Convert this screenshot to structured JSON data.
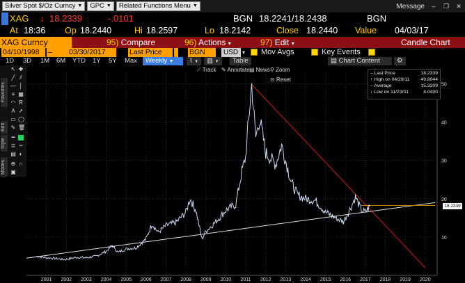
{
  "topbar": {
    "security_field": "Silver Spot $/Oz Curncy",
    "gpc_field": "GPC",
    "related_field": "Related Functions Menu",
    "message_label": "Message"
  },
  "quote": {
    "ticker": "XAG",
    "arrow": "↓",
    "last": "18.2339",
    "change": "-.0101",
    "source_label": "BGN",
    "bid_ask": "18.2241/18.2438",
    "source_label2": "BGN",
    "at_label": "At",
    "at_time": "18:36",
    "op_label": "Op",
    "open": "18.2440",
    "hi_label": "Hi",
    "high": "18.2597",
    "lo_label": "Lo",
    "low": "18.2142",
    "close_label": "Close",
    "close": "18.2440",
    "value_label": "Value",
    "value_date": "04/03/17"
  },
  "funcbar": {
    "security": "XAG Curncy",
    "compare_num": "95)",
    "compare": "Compare",
    "actions_num": "96)",
    "actions": "Actions",
    "edit_num": "97)",
    "edit": "Edit",
    "chart_type": "Candle Chart"
  },
  "inputs": {
    "start_date": "04/10/1998",
    "end_date": "03/30/2017",
    "price_type": "Last Price",
    "source": "BGN",
    "currency": "USD",
    "mov_avgs": "Mov Avgs",
    "key_events": "Key Events"
  },
  "periods": {
    "tabs": [
      "1D",
      "3D",
      "1M",
      "6M",
      "YTD",
      "1Y",
      "5Y",
      "Max"
    ],
    "frequency": "Weekly",
    "table": "Table",
    "chart_content": "Chart Content"
  },
  "lefttools": {
    "tabs": [
      "Favorites",
      "Edit",
      "Style",
      "Modes"
    ]
  },
  "charttools": {
    "track": "Track",
    "annotate": "Annotate",
    "news": "News",
    "zoom": "Zoom",
    "reset": "Reset"
  },
  "legend": {
    "last_price_label": "Last Price",
    "last_price": "18.2339",
    "high_label": "High on 04/29/11",
    "high": "49.8044",
    "average_label": "Average",
    "average": "15.3209",
    "low_label": "Low on 11/23/01",
    "low": "4.0400"
  },
  "last_price_tag": "18.2339",
  "chart_data": {
    "type": "line",
    "series": [
      {
        "name": "Last Price",
        "x": [
          2000.5,
          2001.0,
          2001.5,
          2001.9,
          2002.5,
          2003.0,
          2003.5,
          2004.0,
          2004.3,
          2004.6,
          2005.0,
          2005.5,
          2006.0,
          2006.3,
          2006.6,
          2007.0,
          2007.5,
          2008.0,
          2008.2,
          2008.5,
          2008.8,
          2009.0,
          2009.5,
          2010.0,
          2010.5,
          2010.8,
          2011.0,
          2011.1,
          2011.3,
          2011.5,
          2011.7,
          2012.0,
          2012.5,
          2012.8,
          2013.0,
          2013.3,
          2013.6,
          2014.0,
          2014.5,
          2015.0,
          2015.5,
          2015.9,
          2016.3,
          2016.5,
          2016.8,
          2017.0,
          2017.25
        ],
        "y": [
          5.0,
          4.6,
          4.4,
          4.1,
          4.7,
          4.6,
          5.0,
          6.3,
          7.8,
          6.0,
          6.9,
          7.2,
          9.5,
          13.5,
          11.2,
          13.0,
          13.8,
          16.5,
          20.0,
          17.0,
          9.5,
          11.5,
          14.0,
          17.0,
          18.5,
          27.0,
          31.0,
          38.0,
          49.8,
          36.0,
          41.0,
          32.0,
          29.0,
          34.0,
          30.0,
          24.0,
          21.0,
          20.0,
          19.5,
          16.5,
          15.0,
          14.0,
          18.0,
          20.5,
          17.0,
          16.5,
          18.2339
        ]
      }
    ],
    "trendlines": [
      {
        "name": "resistance",
        "x": [
          2011.3,
          2020.0
        ],
        "y": [
          49.8,
          2.0
        ]
      },
      {
        "name": "support",
        "x": [
          2000.0,
          2020.5
        ],
        "y": [
          4.5,
          19.0
        ]
      },
      {
        "name": "last-price-line",
        "x": [
          2016.8,
          2020.5
        ],
        "y": [
          18.2339,
          18.2339
        ]
      }
    ],
    "x_ticks": [
      "2001",
      "2002",
      "2003",
      "2004",
      "2005",
      "2006",
      "2007",
      "2008",
      "2009",
      "2010",
      "2011",
      "2012",
      "2013",
      "2014",
      "2015",
      "2016",
      "2017",
      "2018",
      "2019",
      "2020"
    ],
    "y_ticks": [
      10,
      20,
      30,
      40,
      50
    ],
    "xlim": [
      2000.0,
      2020.6
    ],
    "ylim": [
      0,
      53
    ],
    "grid": true,
    "colors": {
      "price": "#c8d8f0",
      "resistance": "#d01818",
      "support": "#e0e0e0",
      "last_line": "#d08000",
      "grid": "#2a2a2a"
    }
  }
}
